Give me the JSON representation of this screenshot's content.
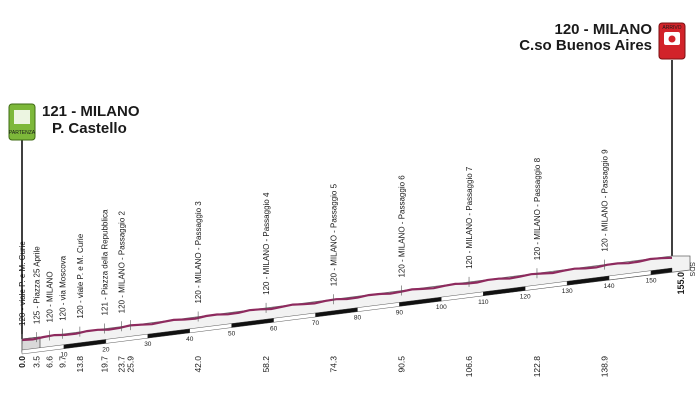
{
  "start": {
    "elevation_name": "121 - MILANO",
    "place": "P. Castello",
    "badge": "PARTENZA",
    "icon": "start-flag-icon",
    "color": "#7db83a"
  },
  "finish": {
    "elevation_name": "120 - MILANO",
    "place": "C.so Buenos Aires",
    "badge": "ARRIVO",
    "icon": "finish-camera-icon",
    "color": "#d2232a"
  },
  "profile_color": "#8e2a5e",
  "total_km_label": "155.0",
  "sds_label": "SDS",
  "waypoints": [
    {
      "km": 0.0,
      "km_label": "0.0",
      "text": "120 - viale P. e M. Curie"
    },
    {
      "km": 3.5,
      "km_label": "3.5",
      "text": "125 - Piazza 25 Aprile"
    },
    {
      "km": 6.6,
      "km_label": "6.6",
      "text": "120 - MILANO"
    },
    {
      "km": 9.7,
      "km_label": "9.7",
      "text": "120 - via Moscova"
    },
    {
      "km": 13.8,
      "km_label": "13.8",
      "text": "120 - viale P. e M. Curie"
    },
    {
      "km": 19.7,
      "km_label": "19.7",
      "text": "121 - Piazza della Repubblica"
    },
    {
      "km": 23.7,
      "km_label": "23.7",
      "text": "120 - MILANO - Passaggio 2"
    },
    {
      "km": 25.9,
      "km_label": "25.9",
      "text": ""
    },
    {
      "km": 42.0,
      "km_label": "42.0",
      "text": "120 - MILANO - Passaggio 3"
    },
    {
      "km": 58.2,
      "km_label": "58.2",
      "text": "120 - MILANO - Passaggio 4"
    },
    {
      "km": 74.3,
      "km_label": "74.3",
      "text": "120 - MILANO - Passaggio 5"
    },
    {
      "km": 90.5,
      "km_label": "90.5",
      "text": "120 - MILANO - Passaggio 6"
    },
    {
      "km": 106.6,
      "km_label": "106.6",
      "text": "120 - MILANO - Passaggio 7"
    },
    {
      "km": 122.8,
      "km_label": "122.8",
      "text": "120 - MILANO - Passaggio 8"
    },
    {
      "km": 138.9,
      "km_label": "138.9",
      "text": "120 - MILANO - Passaggio 9"
    }
  ],
  "km_ticks": [
    "10",
    "20",
    "30",
    "40",
    "50",
    "60",
    "70",
    "80",
    "90",
    "100",
    "110",
    "120",
    "130",
    "140",
    "150"
  ],
  "km_tick_values": [
    10,
    20,
    30,
    40,
    50,
    60,
    70,
    80,
    90,
    100,
    110,
    120,
    130,
    140,
    150
  ],
  "km_total": 155.0
}
